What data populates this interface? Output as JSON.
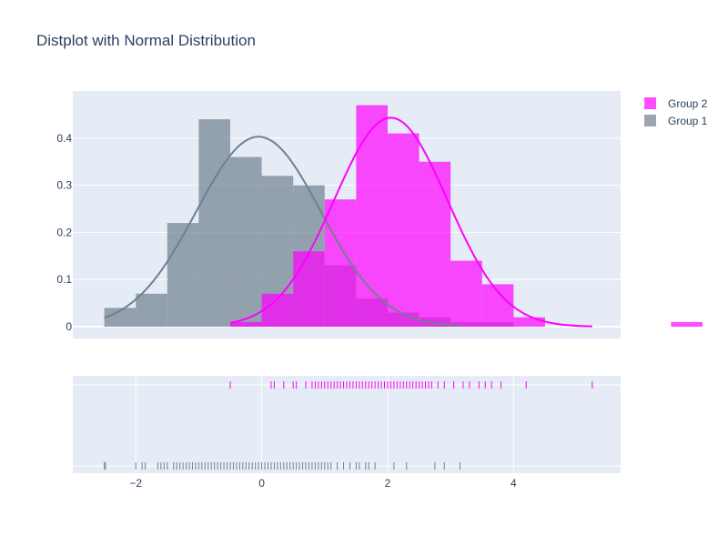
{
  "chart_data": {
    "type": "histogram",
    "title": "Distplot with Normal Distribution",
    "x_range": [
      -3,
      5.7
    ],
    "hist_y_range": [
      -0.025,
      0.5
    ],
    "x_ticks": [
      {
        "value": -2,
        "label": "−2"
      },
      {
        "value": 0,
        "label": "0"
      },
      {
        "value": 2,
        "label": "2"
      },
      {
        "value": 4,
        "label": "4"
      }
    ],
    "y_ticks": [
      {
        "value": 0,
        "label": "0"
      },
      {
        "value": 0.1,
        "label": "0.1"
      },
      {
        "value": 0.2,
        "label": "0.2"
      },
      {
        "value": 0.3,
        "label": "0.3"
      },
      {
        "value": 0.4,
        "label": "0.4"
      }
    ],
    "legend": [
      {
        "name": "Group 2",
        "color": "#ff00ff"
      },
      {
        "name": "Group 1",
        "color": "#708090"
      }
    ],
    "series": [
      {
        "name": "Group 1",
        "color": "#708090",
        "bin_start": -2.5,
        "bin_size": 0.5,
        "density": [
          0.04,
          0.07,
          0.22,
          0.44,
          0.36,
          0.32,
          0.3,
          0.13,
          0.06,
          0.03,
          0.02,
          0.01,
          0.01
        ],
        "normal_mean": -0.05,
        "normal_std": 0.99,
        "rug": [
          -2.5,
          -2.48,
          -2.0,
          -1.9,
          -1.85,
          -1.65,
          -1.6,
          -1.55,
          -1.5,
          -1.4,
          -1.35,
          -1.3,
          -1.25,
          -1.2,
          -1.15,
          -1.1,
          -1.05,
          -1.0,
          -0.95,
          -0.9,
          -0.85,
          -0.8,
          -0.75,
          -0.7,
          -0.65,
          -0.6,
          -0.55,
          -0.5,
          -0.45,
          -0.4,
          -0.35,
          -0.3,
          -0.25,
          -0.2,
          -0.15,
          -0.1,
          -0.05,
          0.0,
          0.05,
          0.1,
          0.15,
          0.2,
          0.25,
          0.3,
          0.35,
          0.4,
          0.45,
          0.5,
          0.55,
          0.6,
          0.65,
          0.7,
          0.75,
          0.8,
          0.85,
          0.9,
          0.95,
          1.0,
          1.05,
          1.1,
          1.2,
          1.3,
          1.4,
          1.5,
          1.55,
          1.65,
          1.7,
          1.8,
          2.1,
          2.3,
          2.75,
          2.9,
          3.15
        ]
      },
      {
        "name": "Group 2",
        "color": "#ff00ff",
        "bin_start": -0.5,
        "bin_size": 0.5,
        "density": [
          0.01,
          0.07,
          0.16,
          0.27,
          0.47,
          0.41,
          0.35,
          0.14,
          0.09,
          0.02,
          0.0,
          0.0,
          0.0,
          0.0,
          0.01
        ],
        "normal_mean": 2.05,
        "normal_std": 0.9,
        "rug": [
          -0.5,
          0.15,
          0.2,
          0.35,
          0.5,
          0.55,
          0.7,
          0.8,
          0.85,
          0.9,
          0.95,
          1.0,
          1.05,
          1.1,
          1.15,
          1.2,
          1.25,
          1.3,
          1.35,
          1.4,
          1.45,
          1.5,
          1.55,
          1.6,
          1.65,
          1.7,
          1.75,
          1.8,
          1.85,
          1.9,
          1.95,
          2.0,
          2.05,
          2.1,
          2.15,
          2.2,
          2.25,
          2.3,
          2.35,
          2.4,
          2.45,
          2.5,
          2.55,
          2.6,
          2.65,
          2.7,
          2.8,
          2.9,
          3.05,
          3.2,
          3.3,
          3.45,
          3.55,
          3.65,
          3.8,
          4.2,
          5.25
        ]
      }
    ]
  }
}
